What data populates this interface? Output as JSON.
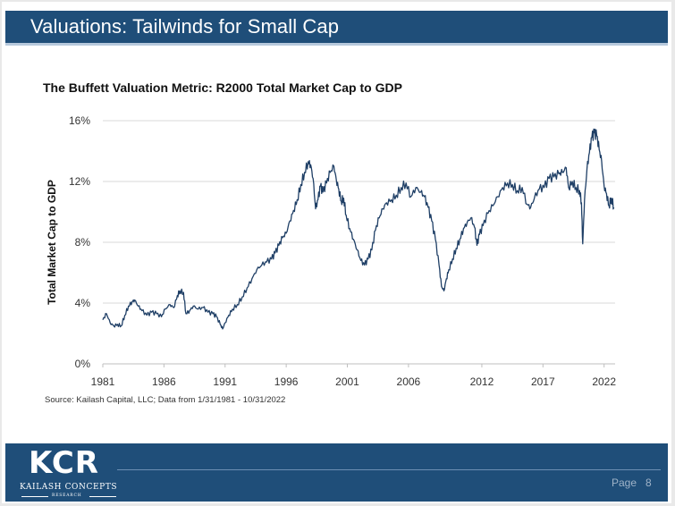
{
  "header": {
    "title": "Valuations: Tailwinds for Small Cap"
  },
  "chart_data": {
    "type": "line",
    "title": "The Buffett Valuation Metric: R2000 Total Market Cap to GDP",
    "xlabel": "",
    "ylabel": "Total Market Cap to GDP",
    "ylim": [
      0,
      16
    ],
    "xlim": [
      1981,
      2022.9
    ],
    "ytick_values": [
      0,
      4,
      8,
      12,
      16
    ],
    "ytick_labels": [
      "0%",
      "4%",
      "8%",
      "12%",
      "16%"
    ],
    "xtick_values": [
      1981,
      1986,
      1991,
      1996,
      2001,
      2006,
      2012,
      2017,
      2022
    ],
    "xtick_labels": [
      "1981",
      "1986",
      "1991",
      "1996",
      "2001",
      "2006",
      "2012",
      "2017",
      "2022"
    ],
    "grid": "horizontal",
    "series": [
      {
        "name": "R2000 Total Market Cap to GDP (%)",
        "color": "#1f3f66",
        "x": [
          1981.0,
          1981.3,
          1981.6,
          1981.9,
          1982.2,
          1982.5,
          1982.8,
          1983.1,
          1983.4,
          1983.6,
          1983.9,
          1984.2,
          1984.6,
          1985.0,
          1985.4,
          1985.8,
          1986.1,
          1986.5,
          1986.8,
          1987.1,
          1987.3,
          1987.6,
          1987.8,
          1988.1,
          1988.4,
          1988.8,
          1989.2,
          1989.6,
          1990.0,
          1990.3,
          1990.6,
          1990.8,
          1991.0,
          1991.3,
          1991.6,
          1992.0,
          1992.4,
          1992.8,
          1993.2,
          1993.6,
          1994.0,
          1994.4,
          1994.8,
          1995.1,
          1995.4,
          1995.7,
          1996.0,
          1996.3,
          1996.6,
          1996.9,
          1997.2,
          1997.5,
          1997.8,
          1998.0,
          1998.2,
          1998.4,
          1998.6,
          1998.8,
          1999.0,
          1999.3,
          1999.6,
          1999.9,
          2000.1,
          2000.3,
          2000.5,
          2000.7,
          2000.9,
          2001.2,
          2001.5,
          2001.8,
          2002.1,
          2002.4,
          2002.7,
          2003.0,
          2003.3,
          2003.6,
          2003.9,
          2004.2,
          2004.6,
          2005.0,
          2005.4,
          2005.8,
          2006.2,
          2006.6,
          2007.0,
          2007.3,
          2007.6,
          2007.9,
          2008.2,
          2008.5,
          2008.7,
          2008.9,
          2009.1,
          2009.3,
          2009.6,
          2009.9,
          2010.2,
          2010.5,
          2010.8,
          2011.1,
          2011.4,
          2011.6,
          2011.8,
          2012.1,
          2012.5,
          2012.9,
          2013.3,
          2013.7,
          2014.1,
          2014.5,
          2014.9,
          2015.3,
          2015.7,
          2016.0,
          2016.3,
          2016.7,
          2017.1,
          2017.5,
          2017.9,
          2018.3,
          2018.6,
          2018.9,
          2019.1,
          2019.4,
          2019.7,
          2020.0,
          2020.15,
          2020.25,
          2020.4,
          2020.6,
          2020.8,
          2021.0,
          2021.2,
          2021.4,
          2021.6,
          2021.8,
          2022.0,
          2022.2,
          2022.4,
          2022.6,
          2022.8
        ],
        "values": [
          2.9,
          3.3,
          2.7,
          2.5,
          2.6,
          2.5,
          3.2,
          3.8,
          4.1,
          4.2,
          3.8,
          3.5,
          3.2,
          3.4,
          3.3,
          3.1,
          3.6,
          3.9,
          3.7,
          4.5,
          4.8,
          4.7,
          3.3,
          3.5,
          3.8,
          3.6,
          3.7,
          3.4,
          3.3,
          3.1,
          2.6,
          2.3,
          2.7,
          3.2,
          3.6,
          3.9,
          4.4,
          5.0,
          5.6,
          6.2,
          6.5,
          6.7,
          6.9,
          7.3,
          7.8,
          8.3,
          8.6,
          9.4,
          10.1,
          10.8,
          11.8,
          12.6,
          13.3,
          13.1,
          12.2,
          10.2,
          10.8,
          11.7,
          11.3,
          11.9,
          12.6,
          13.0,
          12.1,
          11.5,
          10.7,
          10.9,
          9.8,
          8.9,
          8.2,
          7.5,
          6.8,
          6.5,
          6.9,
          7.5,
          8.8,
          9.6,
          10.2,
          10.6,
          10.8,
          11.1,
          11.6,
          11.9,
          11.0,
          11.6,
          11.3,
          11.0,
          10.3,
          9.4,
          8.2,
          6.5,
          5.1,
          4.8,
          5.6,
          6.2,
          6.9,
          7.6,
          8.2,
          8.9,
          9.3,
          9.6,
          9.0,
          7.8,
          8.5,
          9.1,
          9.9,
          10.4,
          11.0,
          11.6,
          11.9,
          11.8,
          11.4,
          11.6,
          10.5,
          10.3,
          10.9,
          11.5,
          11.6,
          12.2,
          12.3,
          12.5,
          12.6,
          12.9,
          11.6,
          12.0,
          11.6,
          11.4,
          10.6,
          7.9,
          10.8,
          12.8,
          13.9,
          14.9,
          15.2,
          15.0,
          14.1,
          13.3,
          11.7,
          11.2,
          10.4,
          10.9,
          10.3
        ]
      }
    ],
    "source": "Source: Kailash Capital, LLC; Data from 1/31/1981 - 10/31/2022"
  },
  "footer": {
    "logo_letters": "KCR",
    "logo_name": "KAILASH CONCEPTS",
    "logo_sub": "RESEARCH",
    "page_label": "Page",
    "page_number": "8"
  },
  "colors": {
    "header_bg": "#1f4e79",
    "footer_bg": "#1f4e79",
    "line": "#1f3f66",
    "grid": "#d9d9d9"
  }
}
